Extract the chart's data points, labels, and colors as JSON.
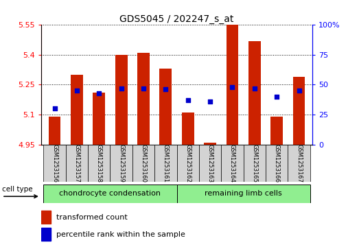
{
  "title": "GDS5045 / 202247_s_at",
  "samples": [
    "GSM1253156",
    "GSM1253157",
    "GSM1253158",
    "GSM1253159",
    "GSM1253160",
    "GSM1253161",
    "GSM1253162",
    "GSM1253163",
    "GSM1253164",
    "GSM1253165",
    "GSM1253166",
    "GSM1253167"
  ],
  "transformed_count": [
    5.09,
    5.3,
    5.21,
    5.4,
    5.41,
    5.33,
    5.11,
    4.96,
    5.55,
    5.47,
    5.09,
    5.29
  ],
  "percentile_rank": [
    30,
    45,
    43,
    47,
    47,
    46,
    37,
    36,
    48,
    47,
    40,
    45
  ],
  "ymin": 4.95,
  "ymax": 5.55,
  "yticks_left": [
    4.95,
    5.1,
    5.25,
    5.4,
    5.55
  ],
  "yticks_right": [
    0,
    25,
    50,
    75,
    100
  ],
  "bar_color": "#cc2200",
  "marker_color": "#0000cc",
  "group1_label": "chondrocyte condensation",
  "group2_label": "remaining limb cells",
  "group_color": "#90ee90",
  "cell_type_label": "cell type",
  "legend_red_label": "transformed count",
  "legend_blue_label": "percentile rank within the sample",
  "group1_samples": 6,
  "group2_samples": 6,
  "xtick_bg": "#d3d3d3"
}
